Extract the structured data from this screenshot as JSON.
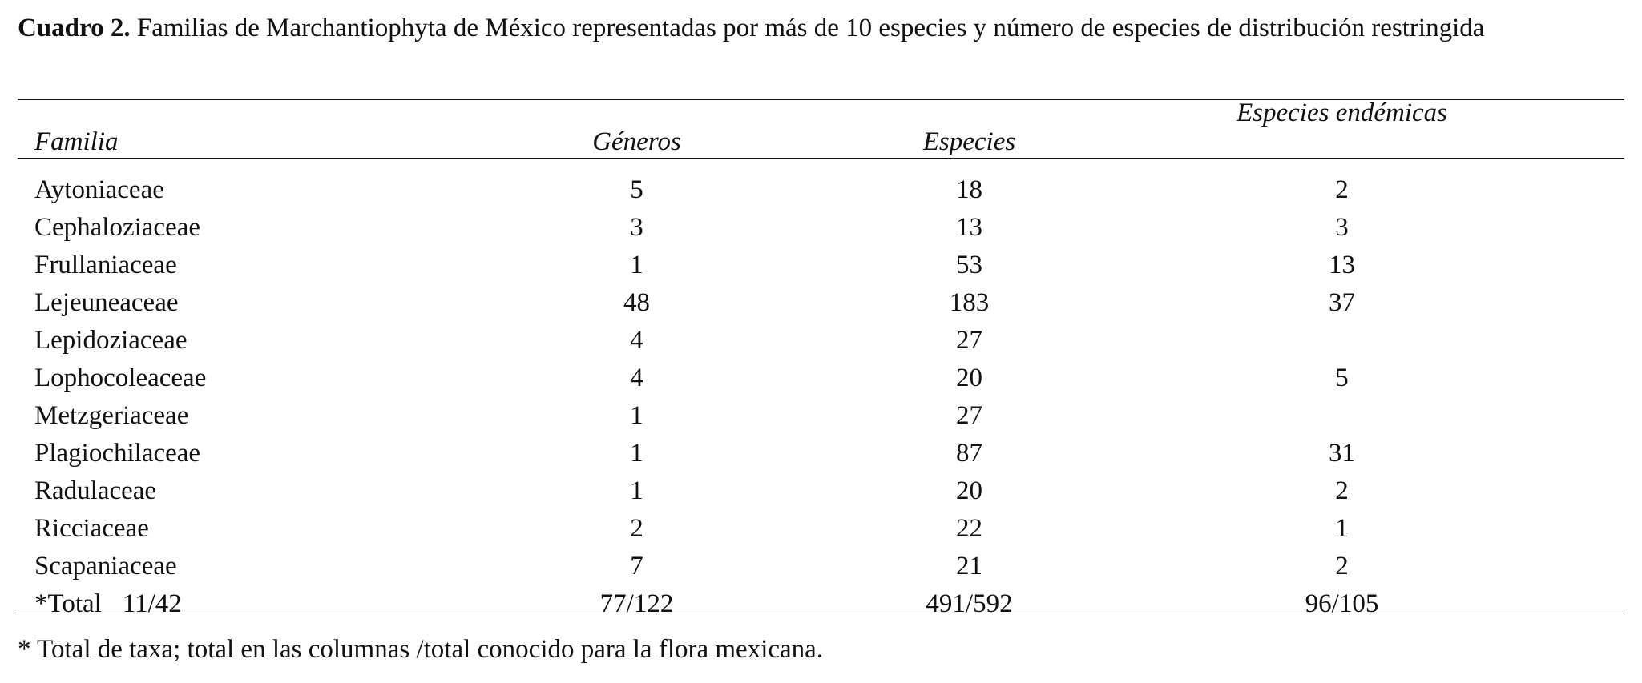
{
  "caption": {
    "label": "Cuadro 2.",
    "text": "Familias de Marchantiophyta de México representadas por más de 10 especies y número de especies de distribución restringida"
  },
  "table": {
    "headers": {
      "familia": "Familia",
      "generos": "Géneros",
      "especies": "Especies",
      "endemicas": "Especies endémicas"
    },
    "rows": [
      {
        "familia": "Aytoniaceae",
        "generos": "5",
        "especies": "18",
        "endemicas": "2"
      },
      {
        "familia": "Cephaloziaceae",
        "generos": "3",
        "especies": "13",
        "endemicas": "3"
      },
      {
        "familia": "Frullaniaceae",
        "generos": "1",
        "especies": "53",
        "endemicas": "13"
      },
      {
        "familia": "Lejeuneaceae",
        "generos": "48",
        "especies": "183",
        "endemicas": "37"
      },
      {
        "familia": "Lepidoziaceae",
        "generos": "4",
        "especies": "27",
        "endemicas": ""
      },
      {
        "familia": "Lophocoleaceae",
        "generos": "4",
        "especies": "20",
        "endemicas": "5"
      },
      {
        "familia": "Metzgeriaceae",
        "generos": "1",
        "especies": "27",
        "endemicas": ""
      },
      {
        "familia": "Plagiochilaceae",
        "generos": "1",
        "especies": "87",
        "endemicas": "31"
      },
      {
        "familia": "Radulaceae",
        "generos": "1",
        "especies": "20",
        "endemicas": "2"
      },
      {
        "familia": "Ricciaceae",
        "generos": "2",
        "especies": "22",
        "endemicas": "1"
      },
      {
        "familia": "Scapaniaceae",
        "generos": "7",
        "especies": "21",
        "endemicas": "2"
      }
    ],
    "total": {
      "label": "*Total",
      "familia_value": "11/42",
      "generos": "77/122",
      "especies": "491/592",
      "endemicas": "96/105"
    }
  },
  "footnote": "* Total de taxa; total en las columnas /total conocido para la flora mexicana."
}
